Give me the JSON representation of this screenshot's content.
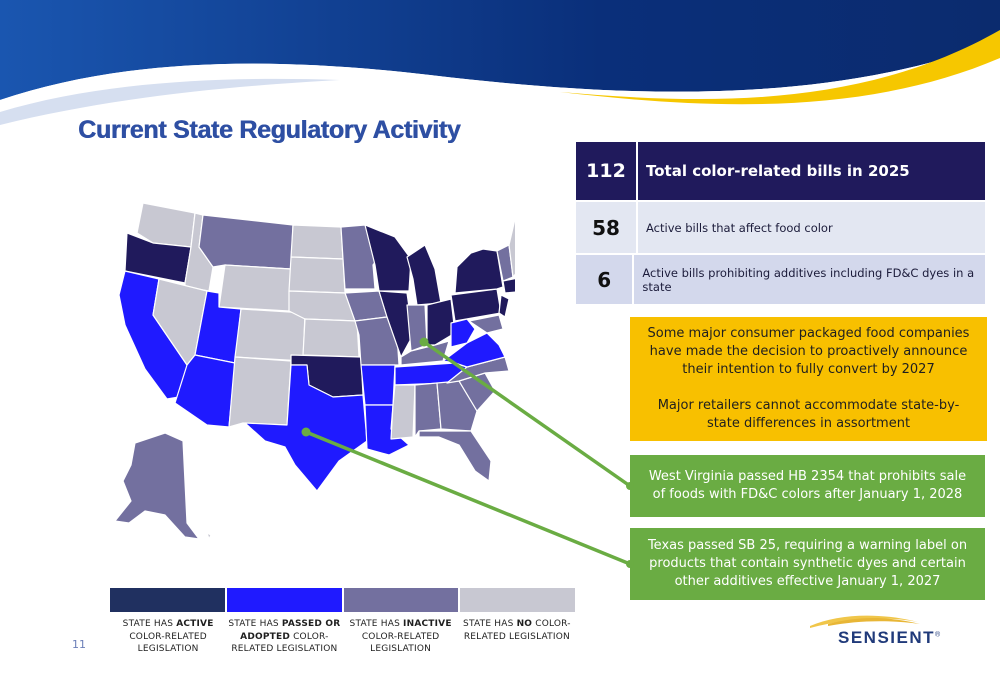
{
  "title": "Current State Regulatory Activity",
  "colors": {
    "active": "#201a5c",
    "passed": "#1f1aff",
    "inactive": "#73709f",
    "none": "#c8c8d2",
    "callout_yellow": "#f8c000",
    "callout_green": "#6aac43",
    "header_blue": "#0d3b8c"
  },
  "stats": [
    {
      "number": "112",
      "label": "Total color-related bills in 2025"
    },
    {
      "number": "58",
      "label": "Active bills that affect food color"
    },
    {
      "number": "6",
      "label": "Active bills prohibiting additives including FD&C dyes in a state"
    }
  ],
  "callouts": {
    "yellow_p1": "Some major consumer packaged food companies have made the decision to proactively announce their intention to fully convert by 2027",
    "yellow_p2": "Major retailers cannot accommodate state-by-state differences in assortment",
    "west_virginia": "West Virginia passed HB 2354 that prohibits sale of foods with FD&C colors after January 1, 2028",
    "texas": "Texas passed SB 25, requiring a warning label on products that contain synthetic dyes and certain other additives effective January 1, 2027"
  },
  "legend": [
    {
      "pre": "STATE HAS ",
      "bold": "ACTIVE",
      "post": " COLOR-RELATED LEGISLATION",
      "color": "#203060"
    },
    {
      "pre": "STATE HAS ",
      "bold": "PASSED OR ADOPTED",
      "post": " COLOR-RELATED LEGISLATION",
      "color": "#1f1aff"
    },
    {
      "pre": "STATE HAS ",
      "bold": "INACTIVE",
      "post": " COLOR-RELATED LEGISLATION",
      "color": "#73709f"
    },
    {
      "pre": "STATE HAS ",
      "bold": "NO",
      "post": " COLOR-RELATED LEGISLATION",
      "color": "#c8c8d2"
    }
  ],
  "page_number": "11",
  "logo": {
    "text": "SENSIENT",
    "mark": "®"
  }
}
